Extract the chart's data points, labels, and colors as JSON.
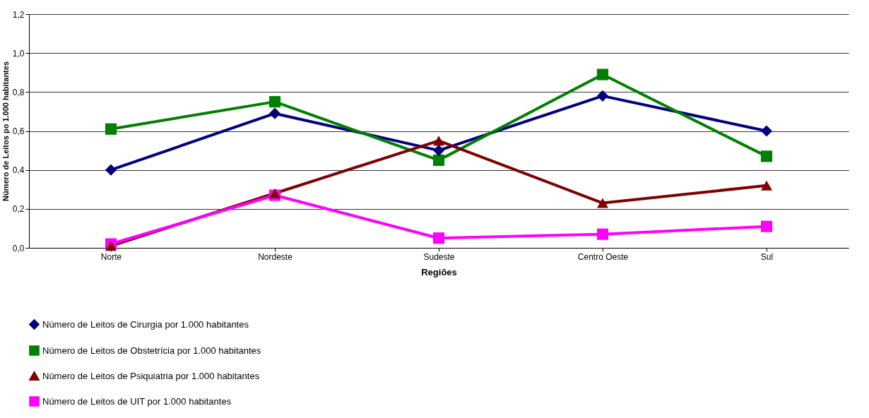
{
  "chart_data": {
    "type": "line",
    "xlabel": "Regiões",
    "ylabel": "Número de Leitos po 1.000 habitantes",
    "categories": [
      "Norte",
      "Nordeste",
      "Sudeste",
      "Centro Oeste",
      "Sul"
    ],
    "series": [
      {
        "name": "Número de Leitos de Cirurgia por 1.000 habitantes",
        "color": "#000080",
        "marker": "diamond",
        "values": [
          0.4,
          0.69,
          0.5,
          0.78,
          0.6
        ]
      },
      {
        "name": "Número de Leitos de Obstetrícia por 1.000 habitantes",
        "color": "#008000",
        "marker": "square",
        "values": [
          0.61,
          0.75,
          0.45,
          0.89,
          0.47
        ]
      },
      {
        "name": "Número de Leitos de Psiquiatria por 1.000 habitantes",
        "color": "#800000",
        "marker": "triangle",
        "values": [
          0.01,
          0.28,
          0.55,
          0.23,
          0.32
        ]
      },
      {
        "name": "Número de Leitos de UIT por 1.000 habitantes",
        "color": "#ff00ff",
        "marker": "square",
        "values": [
          0.02,
          0.27,
          0.05,
          0.07,
          0.11
        ]
      }
    ],
    "ylim": [
      0,
      1.2
    ],
    "yticks": [
      {
        "value": 0,
        "label": "0,0"
      },
      {
        "value": 0.2,
        "label": "0,2"
      },
      {
        "value": 0.4,
        "label": "0,4"
      },
      {
        "value": 0.6,
        "label": "0,6"
      },
      {
        "value": 0.8,
        "label": "0,8"
      },
      {
        "value": 1.0,
        "label": "1,0"
      },
      {
        "value": 1.2,
        "label": "1,2"
      }
    ],
    "grid": "y",
    "legend": "bottom",
    "line_style": "solid"
  }
}
